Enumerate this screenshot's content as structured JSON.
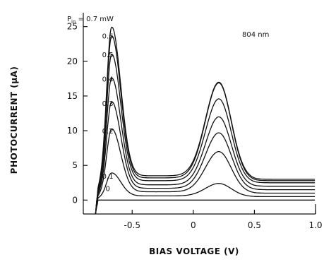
{
  "chart_data": {
    "type": "line",
    "title": "",
    "xlabel": "BIAS VOLTAGE (V)",
    "ylabel": "PHOTOCURRENT (μA)",
    "xlim": [
      -0.9,
      1.0
    ],
    "ylim": [
      -2,
      27
    ],
    "xticks": [
      -0.5,
      0,
      0.5,
      1.0
    ],
    "xtick_labels": [
      "-0.5",
      "0",
      "0.5",
      "1.0"
    ],
    "yticks": [
      0,
      5,
      10,
      15,
      20,
      25
    ],
    "ytick_labels": [
      "0",
      "5",
      "10",
      "15",
      "20",
      "25"
    ],
    "grid": false,
    "legend": "none",
    "annotation": "804 nm",
    "power_label_prefix": "P",
    "power_label_sub": "in",
    "power_label_unit": "mW",
    "series": [
      {
        "name": "0",
        "label": "0",
        "peak1": 0.0,
        "peak2": 0.0,
        "valley": 0.0,
        "plateau": 0.0
      },
      {
        "name": "0.1",
        "label": "0.1",
        "peak1": 4.0,
        "peak2": 2.4,
        "valley": 0.6,
        "plateau": 0.5
      },
      {
        "name": "0.2",
        "label": "0.2",
        "peak1": 10.5,
        "peak2": 7.0,
        "valley": 1.2,
        "plateau": 1.0
      },
      {
        "name": "0.3",
        "label": "0.3",
        "peak1": 14.5,
        "peak2": 9.7,
        "valley": 1.7,
        "plateau": 1.5
      },
      {
        "name": "0.4",
        "label": "0.4",
        "peak1": 18.0,
        "peak2": 12.0,
        "valley": 2.2,
        "plateau": 2.0
      },
      {
        "name": "0.5",
        "label": "0.5",
        "peak1": 21.5,
        "peak2": 14.6,
        "valley": 2.8,
        "plateau": 2.5
      },
      {
        "name": "0.6",
        "label": "0.6",
        "peak1": 24.2,
        "peak2": 16.9,
        "valley": 3.2,
        "plateau": 2.8
      },
      {
        "name": "0.7",
        "label": "0.7",
        "peak1": 25.5,
        "peak2": 17.0,
        "valley": 3.5,
        "plateau": 3.0
      }
    ]
  }
}
